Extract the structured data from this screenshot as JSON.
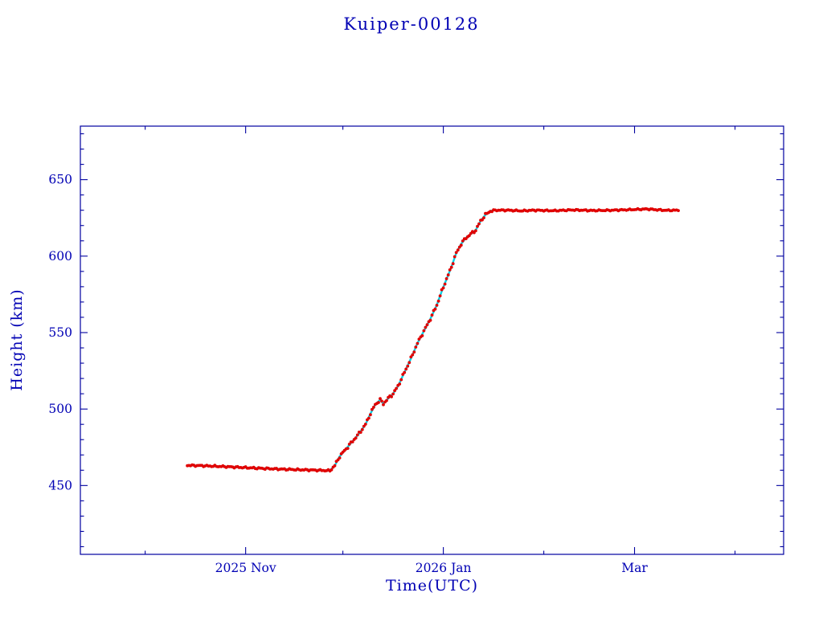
{
  "chart_data": {
    "type": "scatter",
    "title": "Kuiper-00128",
    "xlabel": "Time(UTC)",
    "ylabel": "Height (km)",
    "x_unit": "days since 2025-10-01",
    "xlim": [
      -20,
      197
    ],
    "ylim": [
      405,
      685
    ],
    "grid": false,
    "legend": "none",
    "x_major_ticks": [
      {
        "value": 31,
        "label": "2025 Nov"
      },
      {
        "value": 92,
        "label": "2026 Jan"
      },
      {
        "value": 151,
        "label": "Mar"
      }
    ],
    "x_minor_ticks": [
      0,
      61,
      123,
      182
    ],
    "y_major_ticks": [
      {
        "value": 450,
        "label": "450"
      },
      {
        "value": 500,
        "label": "500"
      },
      {
        "value": 550,
        "label": "550"
      },
      {
        "value": 600,
        "label": "600"
      },
      {
        "value": 650,
        "label": "650"
      }
    ],
    "y_minor_tick_step": 10,
    "colors": {
      "text": "#0000b4",
      "axis": "#0000a0",
      "measurements": "#e00000",
      "fit": "#00d2e6"
    },
    "series": [
      {
        "name": "fit",
        "type": "line",
        "color_key": "fit",
        "points": [
          [
            13,
            463.2
          ],
          [
            18,
            462.9
          ],
          [
            24,
            462.4
          ],
          [
            30,
            461.8
          ],
          [
            36,
            461.2
          ],
          [
            42,
            460.7
          ],
          [
            48,
            460.3
          ],
          [
            53,
            460.0
          ],
          [
            56,
            459.8
          ],
          [
            57,
            459.8
          ],
          [
            58.5,
            463
          ],
          [
            60,
            469
          ],
          [
            62,
            474
          ],
          [
            64,
            479
          ],
          [
            66,
            484
          ],
          [
            68,
            490
          ],
          [
            69.5,
            497
          ],
          [
            71,
            503
          ],
          [
            72.5,
            506
          ],
          [
            73.5,
            503.5
          ],
          [
            75,
            507
          ],
          [
            76.5,
            510
          ],
          [
            78,
            515
          ],
          [
            80,
            524
          ],
          [
            82,
            533
          ],
          [
            84,
            543
          ],
          [
            86,
            551
          ],
          [
            88,
            559
          ],
          [
            90,
            568
          ],
          [
            91.5,
            577
          ],
          [
            93,
            585
          ],
          [
            94.5,
            593
          ],
          [
            96,
            602
          ],
          [
            97.5,
            608
          ],
          [
            99,
            612
          ],
          [
            100.5,
            614.5
          ],
          [
            102,
            617
          ],
          [
            103.5,
            623
          ],
          [
            105,
            627
          ],
          [
            106.5,
            629.5
          ],
          [
            108,
            630
          ],
          [
            112,
            630
          ],
          [
            116,
            629.6
          ],
          [
            120,
            630
          ],
          [
            126,
            629.7
          ],
          [
            132,
            630.2
          ],
          [
            138,
            629.8
          ],
          [
            144,
            630
          ],
          [
            150,
            630.4
          ],
          [
            155,
            630.8
          ],
          [
            158,
            630.3
          ],
          [
            161,
            629.9
          ],
          [
            164,
            630
          ]
        ]
      },
      {
        "name": "measurements",
        "type": "scatter",
        "color_key": "measurements",
        "derived_from": "fit",
        "d_range": [
          13,
          164.5
        ],
        "densify_step_days": 0.5,
        "jitter_km": {
          "pre_ramp": 0.6,
          "ramp": 1.1,
          "post_ramp": 0.5
        },
        "ramp_interval": [
          57,
          107
        ]
      }
    ]
  }
}
